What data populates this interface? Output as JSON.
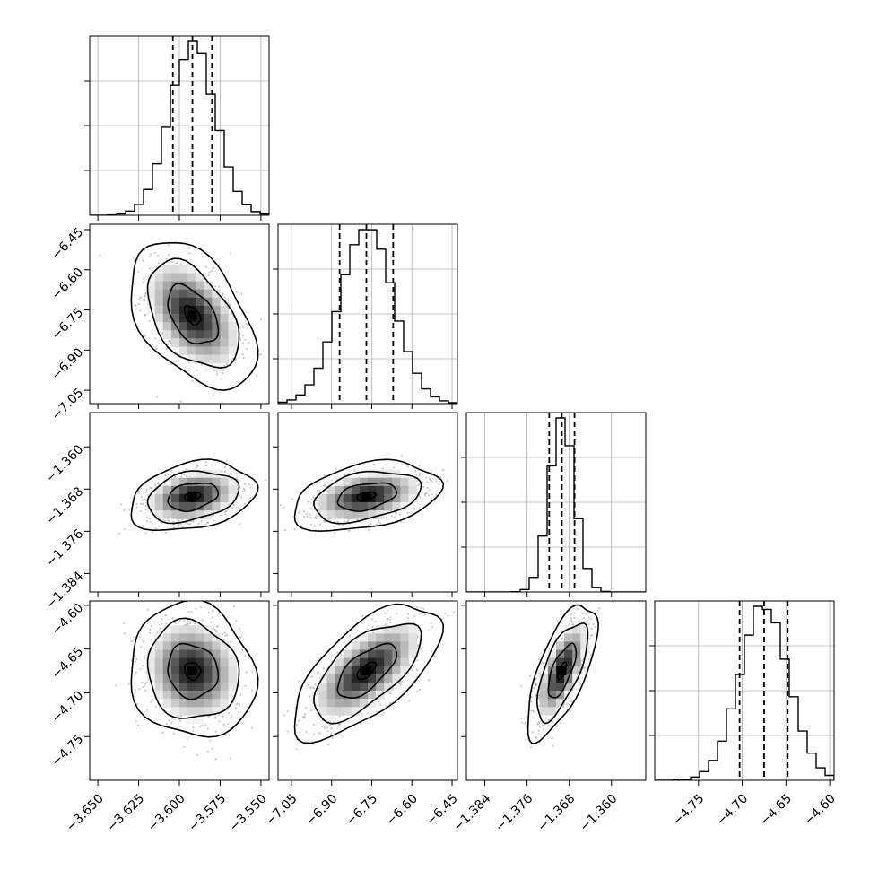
{
  "chart_data": {
    "type": "corner",
    "parameters": [
      {
        "mean": -3.592,
        "q16": -3.604,
        "q84": -3.58,
        "sd": 0.014,
        "range": [
          -3.655,
          -3.545
        ],
        "ticks": [
          -3.65,
          -3.625,
          -3.6,
          -3.575,
          -3.55
        ],
        "tick_labels": [
          "−3.650",
          "−3.625",
          "−3.600",
          "−3.575",
          "−3.550"
        ]
      },
      {
        "mean": -6.77,
        "q16": -6.87,
        "q84": -6.67,
        "sd": 0.1,
        "range": [
          -7.1,
          -6.43
        ],
        "ticks": [
          -7.05,
          -6.9,
          -6.75,
          -6.6,
          -6.45
        ],
        "tick_labels": [
          "−7.05",
          "−6.90",
          "−6.75",
          "−6.60",
          "−6.45"
        ]
      },
      {
        "mean": -1.3694,
        "q16": -1.3718,
        "q84": -1.367,
        "sd": 0.0024,
        "range": [
          -1.3875,
          -1.3535
        ],
        "ticks": [
          -1.384,
          -1.376,
          -1.368,
          -1.36
        ],
        "tick_labels": [
          "−1.384",
          "−1.376",
          "−1.368",
          "−1.360"
        ]
      },
      {
        "mean": -4.675,
        "q16": -4.703,
        "q84": -4.648,
        "sd": 0.028,
        "range": [
          -4.8,
          -4.595
        ],
        "ticks": [
          -4.75,
          -4.7,
          -4.65,
          -4.6
        ],
        "tick_labels": [
          "−4.75",
          "−4.70",
          "−4.65",
          "−4.60"
        ]
      }
    ],
    "correlations": {
      "1_0": -0.45,
      "2_0": 0.28,
      "2_1": 0.35,
      "3_0": -0.1,
      "3_1": 0.65,
      "3_2": 0.68
    },
    "hist_peak_fraction": 0.97,
    "grid": true,
    "colors": {
      "scatter": "#9a9a9a",
      "density": "#000000",
      "line": "#000000"
    }
  }
}
